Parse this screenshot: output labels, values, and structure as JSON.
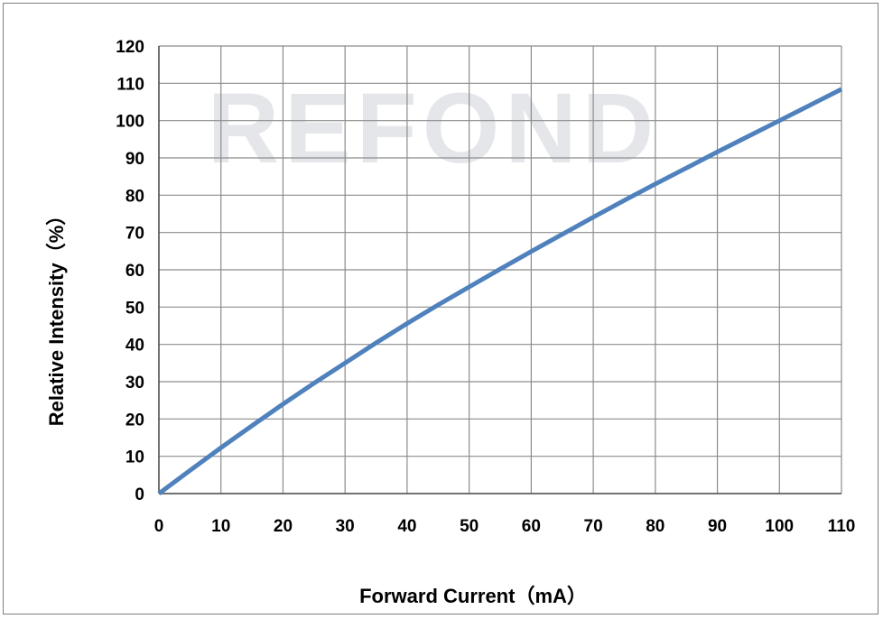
{
  "chart_data": {
    "type": "line",
    "title": "",
    "xlabel": "Forward Current（mA）",
    "ylabel": "Relative Intensity（%）",
    "xlim": [
      0,
      110
    ],
    "ylim": [
      0,
      120
    ],
    "xticks": [
      0,
      10,
      20,
      30,
      40,
      50,
      60,
      70,
      80,
      90,
      100,
      110
    ],
    "yticks": [
      0,
      10,
      20,
      30,
      40,
      50,
      60,
      70,
      80,
      90,
      100,
      110,
      120
    ],
    "grid": true,
    "series": [
      {
        "color": "#4f81bd",
        "x": [
          0,
          5,
          10,
          15,
          20,
          25,
          30,
          35,
          40,
          45,
          50,
          55,
          60,
          65,
          70,
          75,
          80,
          85,
          90,
          95,
          100,
          105,
          110
        ],
        "y": [
          0,
          6.2,
          12.3,
          18.2,
          24,
          29.6,
          35,
          40.4,
          45.6,
          50.6,
          55.4,
          60.2,
          64.9,
          69.5,
          74.1,
          78.6,
          83,
          87.3,
          91.6,
          95.8,
          100,
          104.2,
          108.4
        ]
      }
    ]
  },
  "watermark": "REFOND"
}
